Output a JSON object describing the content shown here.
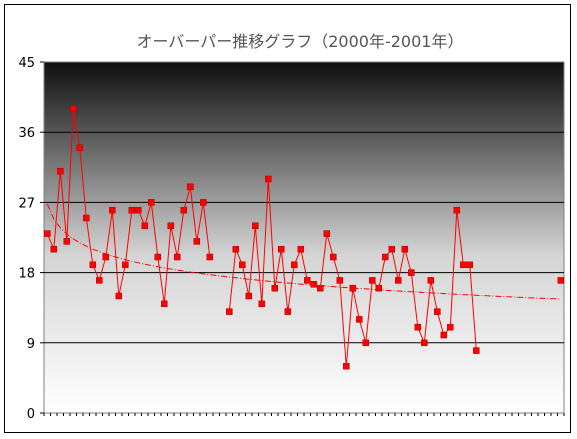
{
  "chart_data": {
    "type": "line",
    "title": "オーバーパー推移グラフ（2000年-2001年）",
    "ylim": [
      0,
      45
    ],
    "yticks": [
      "0",
      "9",
      "18",
      "27",
      "36",
      "45"
    ],
    "grid": true,
    "legend": "none",
    "series": [
      {
        "color": "#ff0000",
        "marker": "square",
        "segments": [
          [
            23,
            21,
            31,
            22,
            39,
            34,
            25,
            19,
            17,
            20,
            26,
            15,
            19,
            26,
            26,
            24,
            27,
            20,
            14,
            24,
            20,
            26,
            29,
            22,
            27,
            20
          ],
          [
            13,
            21,
            19,
            15,
            24,
            14,
            30,
            16,
            21,
            13,
            19,
            21,
            17,
            16.5,
            16,
            23,
            20,
            17,
            6,
            16,
            12,
            9,
            17,
            16,
            20,
            21,
            17,
            21,
            18,
            11,
            9,
            17,
            13,
            10,
            11,
            26,
            19,
            19,
            8
          ],
          [
            17
          ]
        ],
        "segment_starts": [
          0,
          28,
          79
        ]
      }
    ],
    "trendline": {
      "type": "dash-dot",
      "color": "#ff0000",
      "values": [
        26.8,
        14.6
      ]
    },
    "n_points": 80
  }
}
